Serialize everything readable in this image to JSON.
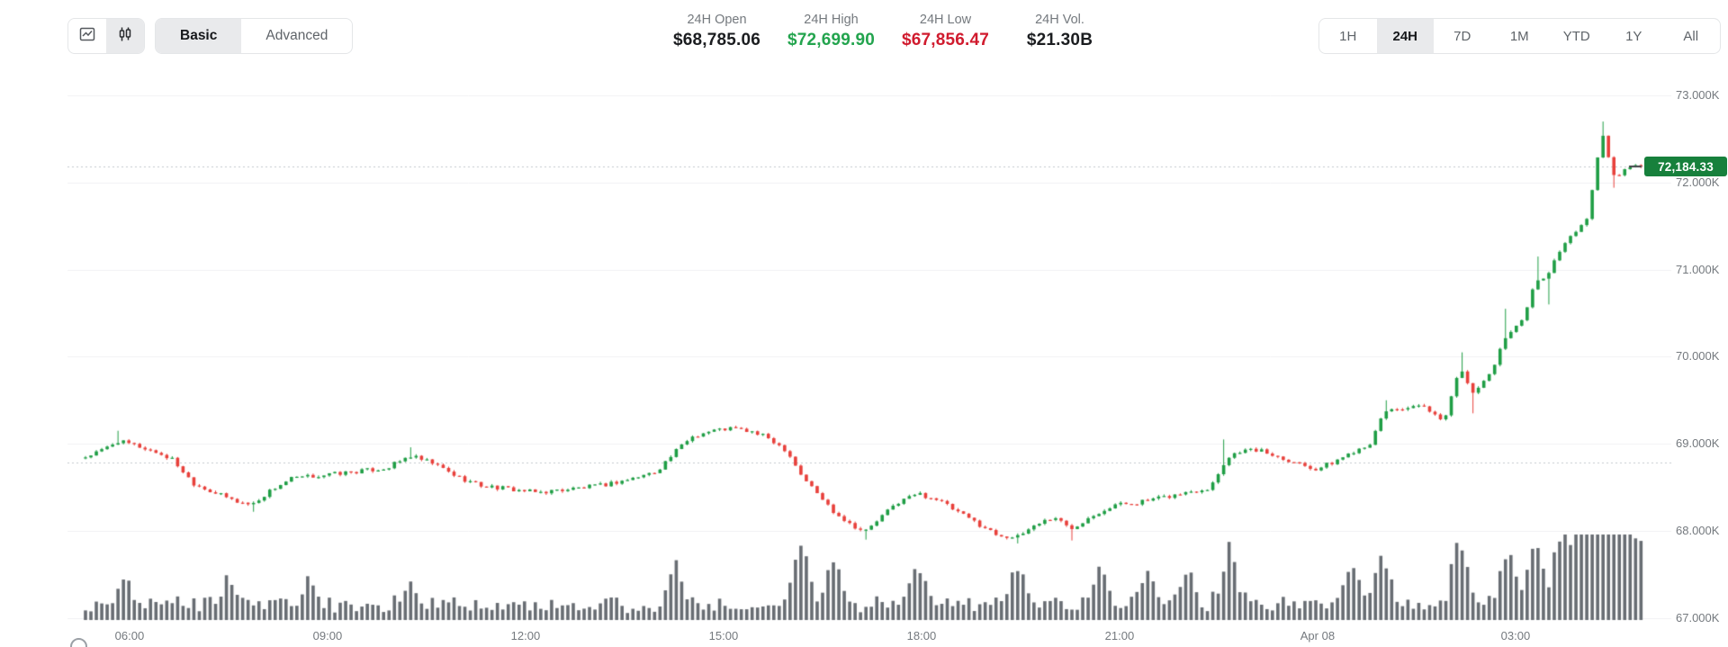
{
  "header": {
    "chart_style": {
      "line_button_icon": "line-chart-icon",
      "candle_button_icon": "candlestick-icon",
      "selected": "candlestick"
    },
    "modes": {
      "basic": "Basic",
      "advanced": "Advanced",
      "selected": "Basic"
    },
    "stats": {
      "open": {
        "label": "24H Open",
        "value": "$68,785.06"
      },
      "high": {
        "label": "24H High",
        "value": "$72,699.90"
      },
      "low": {
        "label": "24H Low",
        "value": "$67,856.47"
      },
      "vol": {
        "label": "24H Vol.",
        "value": "$21.30B"
      }
    },
    "range_items": [
      "1H",
      "24H",
      "7D",
      "1M",
      "YTD",
      "1Y",
      "All"
    ],
    "range_selected": "24H"
  },
  "chart_data": {
    "type": "candlestick",
    "last_price_label": "72,184.33",
    "last_price": 72184.33,
    "open_24h": 68785.06,
    "high_24h": 72699.9,
    "low_24h": 67856.47,
    "volume_24h": "$21.30B",
    "y_range_displayed": [
      67000,
      73000
    ],
    "grid": true,
    "legend_position": "none",
    "y_ticks": [
      {
        "label": "73.000K",
        "value": 73000
      },
      {
        "label": "72.000K",
        "value": 72000
      },
      {
        "label": "71.000K",
        "value": 71000
      },
      {
        "label": "70.000K",
        "value": 70000
      },
      {
        "label": "69.000K",
        "value": 69000
      },
      {
        "label": "68.000K",
        "value": 68000
      },
      {
        "label": "67.000K",
        "value": 67000
      }
    ],
    "x_ticks": [
      {
        "label": "06:00",
        "f": 0.0278
      },
      {
        "label": "09:00",
        "f": 0.1528
      },
      {
        "label": "12:00",
        "f": 0.2778
      },
      {
        "label": "15:00",
        "f": 0.4028
      },
      {
        "label": "18:00",
        "f": 0.5278
      },
      {
        "label": "21:00",
        "f": 0.6528
      },
      {
        "label": "Apr 08",
        "f": 0.7778
      },
      {
        "label": "03:00",
        "f": 0.9028
      }
    ],
    "dotted_lines": {
      "open_price": 68785.06,
      "last_price": 72184.33
    },
    "candle_count": 288,
    "anchors": [
      [
        0.0,
        68850
      ],
      [
        0.01,
        68920
      ],
      [
        0.02,
        69030
      ],
      [
        0.032,
        68980
      ],
      [
        0.045,
        68900
      ],
      [
        0.055,
        68820
      ],
      [
        0.068,
        68550
      ],
      [
        0.08,
        68450
      ],
      [
        0.095,
        68340
      ],
      [
        0.105,
        68300
      ],
      [
        0.118,
        68480
      ],
      [
        0.13,
        68600
      ],
      [
        0.15,
        68640
      ],
      [
        0.17,
        68680
      ],
      [
        0.19,
        68720
      ],
      [
        0.205,
        68860
      ],
      [
        0.22,
        68770
      ],
      [
        0.235,
        68620
      ],
      [
        0.25,
        68520
      ],
      [
        0.268,
        68480
      ],
      [
        0.285,
        68440
      ],
      [
        0.305,
        68480
      ],
      [
        0.325,
        68520
      ],
      [
        0.345,
        68600
      ],
      [
        0.36,
        68680
      ],
      [
        0.372,
        68900
      ],
      [
        0.382,
        69080
      ],
      [
        0.395,
        69150
      ],
      [
        0.408,
        69180
      ],
      [
        0.42,
        69140
      ],
      [
        0.432,
        69060
      ],
      [
        0.443,
        68920
      ],
      [
        0.452,
        68640
      ],
      [
        0.462,
        68430
      ],
      [
        0.472,
        68230
      ],
      [
        0.483,
        68080
      ],
      [
        0.492,
        67990
      ],
      [
        0.5,
        68120
      ],
      [
        0.512,
        68320
      ],
      [
        0.525,
        68430
      ],
      [
        0.538,
        68360
      ],
      [
        0.55,
        68220
      ],
      [
        0.562,
        68100
      ],
      [
        0.575,
        67960
      ],
      [
        0.588,
        67920
      ],
      [
        0.6,
        68080
      ],
      [
        0.612,
        68160
      ],
      [
        0.622,
        68020
      ],
      [
        0.635,
        68180
      ],
      [
        0.65,
        68300
      ],
      [
        0.665,
        68330
      ],
      [
        0.68,
        68380
      ],
      [
        0.695,
        68440
      ],
      [
        0.71,
        68500
      ],
      [
        0.72,
        68820
      ],
      [
        0.728,
        68920
      ],
      [
        0.74,
        68930
      ],
      [
        0.752,
        68860
      ],
      [
        0.764,
        68790
      ],
      [
        0.777,
        68710
      ],
      [
        0.788,
        68790
      ],
      [
        0.8,
        68910
      ],
      [
        0.812,
        69020
      ],
      [
        0.82,
        69380
      ],
      [
        0.832,
        69410
      ],
      [
        0.845,
        69420
      ],
      [
        0.857,
        69240
      ],
      [
        0.868,
        69880
      ],
      [
        0.877,
        69560
      ],
      [
        0.888,
        69850
      ],
      [
        0.898,
        70280
      ],
      [
        0.907,
        70420
      ],
      [
        0.916,
        70880
      ],
      [
        0.924,
        70950
      ],
      [
        0.932,
        71280
      ],
      [
        0.941,
        71430
      ],
      [
        0.948,
        71600
      ],
      [
        0.953,
        72080
      ],
      [
        0.957,
        72620
      ],
      [
        0.961,
        72300
      ],
      [
        0.965,
        72060
      ],
      [
        0.97,
        72120
      ],
      [
        0.978,
        72184.33
      ]
    ],
    "wick_events": [
      [
        0.02,
        "h",
        69150
      ],
      [
        0.105,
        "l",
        68220
      ],
      [
        0.205,
        "h",
        68960
      ],
      [
        0.492,
        "l",
        67900
      ],
      [
        0.588,
        "l",
        67856.47
      ],
      [
        0.622,
        "l",
        67890
      ],
      [
        0.72,
        "h",
        69050
      ],
      [
        0.82,
        "h",
        69500
      ],
      [
        0.868,
        "h",
        70050
      ],
      [
        0.877,
        "l",
        69350
      ],
      [
        0.898,
        "h",
        70550
      ],
      [
        0.916,
        "h",
        71150
      ],
      [
        0.924,
        "l",
        70600
      ],
      [
        0.957,
        "h",
        72699.9
      ],
      [
        0.965,
        "l",
        71940
      ]
    ],
    "volume_spikes": [
      [
        0.025,
        30
      ],
      [
        0.09,
        32
      ],
      [
        0.14,
        26
      ],
      [
        0.205,
        24
      ],
      [
        0.372,
        38
      ],
      [
        0.452,
        55
      ],
      [
        0.472,
        45
      ],
      [
        0.525,
        40
      ],
      [
        0.588,
        42
      ],
      [
        0.64,
        40
      ],
      [
        0.67,
        35
      ],
      [
        0.695,
        38
      ],
      [
        0.723,
        60
      ],
      [
        0.8,
        48
      ],
      [
        0.82,
        44
      ],
      [
        0.868,
        52
      ],
      [
        0.898,
        48
      ],
      [
        0.916,
        55
      ],
      [
        0.932,
        72
      ],
      [
        0.944,
        92
      ],
      [
        0.953,
        85
      ],
      [
        0.965,
        85
      ],
      [
        0.975,
        62
      ],
      [
        0.982,
        50
      ]
    ],
    "colors": {
      "up": "#1f9e45",
      "down": "#e8403b",
      "volume": "#686d73",
      "grid": "#f0f1f3",
      "dotted": "#c3c8cc",
      "badge_bg": "#17803c",
      "badge_text": "#ffffff",
      "last_tick": "#3f4347",
      "axis_text": "#74797e"
    }
  }
}
